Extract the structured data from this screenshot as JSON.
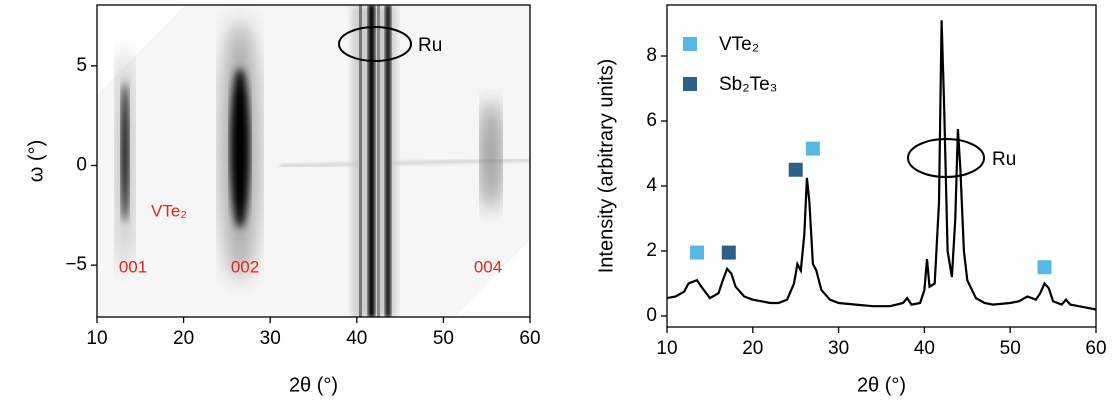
{
  "chart_data": [
    {
      "type": "image",
      "xlabel": "2θ (°)",
      "ylabel": "ω (°)",
      "xlim": [
        10,
        60
      ],
      "xticks": [
        10,
        20,
        30,
        40,
        50,
        60
      ],
      "ylim": [
        -7.6,
        8.05
      ],
      "yticks": [
        {
          "value": -5,
          "label": "−5"
        },
        0,
        5
      ],
      "annotations": [
        "001",
        "002",
        "004",
        "VTe₂",
        "Ru"
      ]
    },
    {
      "type": "line",
      "xlabel": "2θ (°)",
      "ylabel": "Intensity (arbitrary units)",
      "xlim": [
        10,
        60
      ],
      "xticks": [
        10,
        20,
        30,
        40,
        50,
        60
      ],
      "ylim": [
        -0.34,
        9.57
      ],
      "yticks": [
        0,
        2,
        4,
        6,
        8
      ],
      "line": {
        "color": "#000000",
        "x": [
          10,
          11,
          12,
          12.5,
          13,
          13.5,
          14,
          15,
          16,
          16.5,
          17,
          17.5,
          18,
          19,
          20,
          21,
          22,
          23,
          24,
          24.8,
          25.2,
          25.6,
          26,
          26.3,
          26.6,
          27,
          27.4,
          28,
          29,
          30,
          32,
          34,
          36,
          37.5,
          38,
          38.5,
          39.5,
          40,
          40.3,
          40.6,
          41.2,
          41.7,
          42,
          42.3,
          42.7,
          43.2,
          43.6,
          43.9,
          44.2,
          44.6,
          45,
          46,
          47,
          48,
          50,
          51,
          52,
          53,
          53.5,
          54,
          54.5,
          55,
          56,
          56.5,
          57,
          58,
          59,
          60
        ],
        "values": [
          0.55,
          0.6,
          0.75,
          1.0,
          1.05,
          1.1,
          0.9,
          0.55,
          0.7,
          1.1,
          1.45,
          1.3,
          0.9,
          0.6,
          0.5,
          0.45,
          0.4,
          0.4,
          0.5,
          1.0,
          1.6,
          1.4,
          2.5,
          4.25,
          3.5,
          1.6,
          1.4,
          0.8,
          0.5,
          0.4,
          0.35,
          0.3,
          0.3,
          0.4,
          0.55,
          0.35,
          0.4,
          0.8,
          1.75,
          0.9,
          1.0,
          3.5,
          9.1,
          6.5,
          2.0,
          1.2,
          3.0,
          5.75,
          4.5,
          2.0,
          1.1,
          0.55,
          0.4,
          0.35,
          0.4,
          0.45,
          0.6,
          0.5,
          0.7,
          1.0,
          0.85,
          0.45,
          0.35,
          0.5,
          0.35,
          0.3,
          0.25,
          0.2
        ]
      },
      "markers": [
        {
          "name": "VTe₂",
          "color": "#56b8e6",
          "x": [
            13.5,
            27,
            54
          ],
          "values": [
            1.95,
            5.15,
            1.5
          ]
        },
        {
          "name": "Sb₂Te₃",
          "color": "#2d5f8b",
          "x": [
            17.2,
            25
          ],
          "values": [
            1.95,
            4.5
          ]
        }
      ],
      "annotations": [
        "Ru"
      ]
    }
  ]
}
